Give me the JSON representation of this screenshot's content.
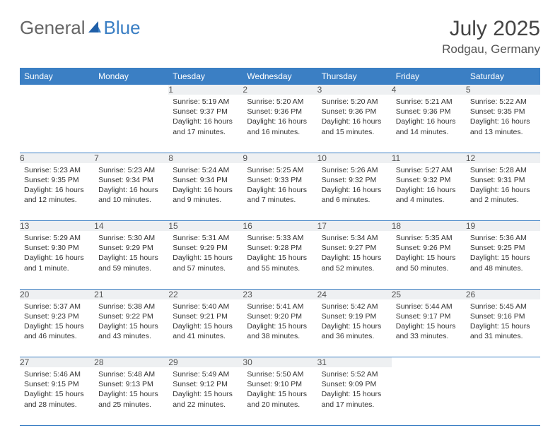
{
  "brand": {
    "part1": "General",
    "part2": "Blue"
  },
  "title": "July 2025",
  "location": "Rodgau, Germany",
  "columns": [
    "Sunday",
    "Monday",
    "Tuesday",
    "Wednesday",
    "Thursday",
    "Friday",
    "Saturday"
  ],
  "colors": {
    "header_bg": "#3b7fc4",
    "header_text": "#ffffff",
    "daynum_bg": "#eef0f2",
    "border": "#3b7fc4",
    "body_bg": "#ffffff",
    "text": "#333333"
  },
  "typography": {
    "title_fontsize": 30,
    "location_fontsize": 17,
    "header_fontsize": 12,
    "cell_fontsize": 10.5,
    "logo_fontsize": 26
  },
  "weeks": [
    [
      null,
      null,
      {
        "n": "1",
        "sunrise": "Sunrise: 5:19 AM",
        "sunset": "Sunset: 9:37 PM",
        "day": "Daylight: 16 hours and 17 minutes."
      },
      {
        "n": "2",
        "sunrise": "Sunrise: 5:20 AM",
        "sunset": "Sunset: 9:36 PM",
        "day": "Daylight: 16 hours and 16 minutes."
      },
      {
        "n": "3",
        "sunrise": "Sunrise: 5:20 AM",
        "sunset": "Sunset: 9:36 PM",
        "day": "Daylight: 16 hours and 15 minutes."
      },
      {
        "n": "4",
        "sunrise": "Sunrise: 5:21 AM",
        "sunset": "Sunset: 9:36 PM",
        "day": "Daylight: 16 hours and 14 minutes."
      },
      {
        "n": "5",
        "sunrise": "Sunrise: 5:22 AM",
        "sunset": "Sunset: 9:35 PM",
        "day": "Daylight: 16 hours and 13 minutes."
      }
    ],
    [
      {
        "n": "6",
        "sunrise": "Sunrise: 5:23 AM",
        "sunset": "Sunset: 9:35 PM",
        "day": "Daylight: 16 hours and 12 minutes."
      },
      {
        "n": "7",
        "sunrise": "Sunrise: 5:23 AM",
        "sunset": "Sunset: 9:34 PM",
        "day": "Daylight: 16 hours and 10 minutes."
      },
      {
        "n": "8",
        "sunrise": "Sunrise: 5:24 AM",
        "sunset": "Sunset: 9:34 PM",
        "day": "Daylight: 16 hours and 9 minutes."
      },
      {
        "n": "9",
        "sunrise": "Sunrise: 5:25 AM",
        "sunset": "Sunset: 9:33 PM",
        "day": "Daylight: 16 hours and 7 minutes."
      },
      {
        "n": "10",
        "sunrise": "Sunrise: 5:26 AM",
        "sunset": "Sunset: 9:32 PM",
        "day": "Daylight: 16 hours and 6 minutes."
      },
      {
        "n": "11",
        "sunrise": "Sunrise: 5:27 AM",
        "sunset": "Sunset: 9:32 PM",
        "day": "Daylight: 16 hours and 4 minutes."
      },
      {
        "n": "12",
        "sunrise": "Sunrise: 5:28 AM",
        "sunset": "Sunset: 9:31 PM",
        "day": "Daylight: 16 hours and 2 minutes."
      }
    ],
    [
      {
        "n": "13",
        "sunrise": "Sunrise: 5:29 AM",
        "sunset": "Sunset: 9:30 PM",
        "day": "Daylight: 16 hours and 1 minute."
      },
      {
        "n": "14",
        "sunrise": "Sunrise: 5:30 AM",
        "sunset": "Sunset: 9:29 PM",
        "day": "Daylight: 15 hours and 59 minutes."
      },
      {
        "n": "15",
        "sunrise": "Sunrise: 5:31 AM",
        "sunset": "Sunset: 9:29 PM",
        "day": "Daylight: 15 hours and 57 minutes."
      },
      {
        "n": "16",
        "sunrise": "Sunrise: 5:33 AM",
        "sunset": "Sunset: 9:28 PM",
        "day": "Daylight: 15 hours and 55 minutes."
      },
      {
        "n": "17",
        "sunrise": "Sunrise: 5:34 AM",
        "sunset": "Sunset: 9:27 PM",
        "day": "Daylight: 15 hours and 52 minutes."
      },
      {
        "n": "18",
        "sunrise": "Sunrise: 5:35 AM",
        "sunset": "Sunset: 9:26 PM",
        "day": "Daylight: 15 hours and 50 minutes."
      },
      {
        "n": "19",
        "sunrise": "Sunrise: 5:36 AM",
        "sunset": "Sunset: 9:25 PM",
        "day": "Daylight: 15 hours and 48 minutes."
      }
    ],
    [
      {
        "n": "20",
        "sunrise": "Sunrise: 5:37 AM",
        "sunset": "Sunset: 9:23 PM",
        "day": "Daylight: 15 hours and 46 minutes."
      },
      {
        "n": "21",
        "sunrise": "Sunrise: 5:38 AM",
        "sunset": "Sunset: 9:22 PM",
        "day": "Daylight: 15 hours and 43 minutes."
      },
      {
        "n": "22",
        "sunrise": "Sunrise: 5:40 AM",
        "sunset": "Sunset: 9:21 PM",
        "day": "Daylight: 15 hours and 41 minutes."
      },
      {
        "n": "23",
        "sunrise": "Sunrise: 5:41 AM",
        "sunset": "Sunset: 9:20 PM",
        "day": "Daylight: 15 hours and 38 minutes."
      },
      {
        "n": "24",
        "sunrise": "Sunrise: 5:42 AM",
        "sunset": "Sunset: 9:19 PM",
        "day": "Daylight: 15 hours and 36 minutes."
      },
      {
        "n": "25",
        "sunrise": "Sunrise: 5:44 AM",
        "sunset": "Sunset: 9:17 PM",
        "day": "Daylight: 15 hours and 33 minutes."
      },
      {
        "n": "26",
        "sunrise": "Sunrise: 5:45 AM",
        "sunset": "Sunset: 9:16 PM",
        "day": "Daylight: 15 hours and 31 minutes."
      }
    ],
    [
      {
        "n": "27",
        "sunrise": "Sunrise: 5:46 AM",
        "sunset": "Sunset: 9:15 PM",
        "day": "Daylight: 15 hours and 28 minutes."
      },
      {
        "n": "28",
        "sunrise": "Sunrise: 5:48 AM",
        "sunset": "Sunset: 9:13 PM",
        "day": "Daylight: 15 hours and 25 minutes."
      },
      {
        "n": "29",
        "sunrise": "Sunrise: 5:49 AM",
        "sunset": "Sunset: 9:12 PM",
        "day": "Daylight: 15 hours and 22 minutes."
      },
      {
        "n": "30",
        "sunrise": "Sunrise: 5:50 AM",
        "sunset": "Sunset: 9:10 PM",
        "day": "Daylight: 15 hours and 20 minutes."
      },
      {
        "n": "31",
        "sunrise": "Sunrise: 5:52 AM",
        "sunset": "Sunset: 9:09 PM",
        "day": "Daylight: 15 hours and 17 minutes."
      },
      null,
      null
    ]
  ]
}
